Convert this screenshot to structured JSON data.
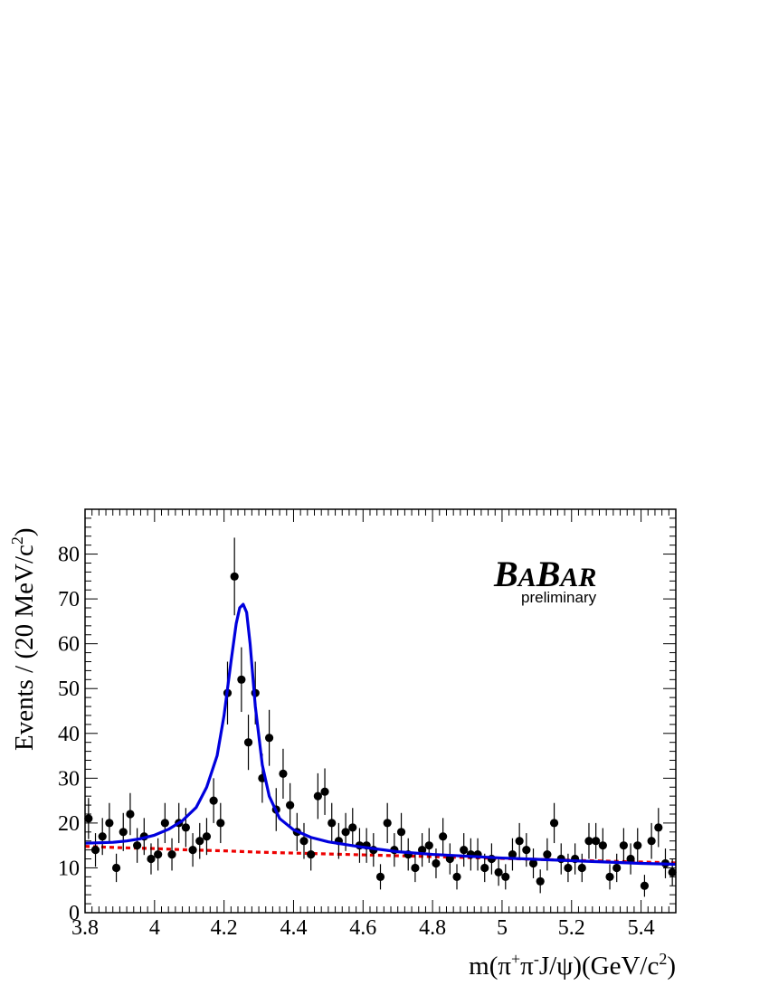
{
  "chart_data": {
    "type": "scatter",
    "xlabel": "m(π⁺π⁻J/ψ)(GeV/c²)",
    "ylabel": "Events / (20 MeV/c²)",
    "xlim": [
      3.8,
      5.5
    ],
    "ylim": [
      0,
      90
    ],
    "x_ticks": [
      "3.8",
      "4",
      "4.2",
      "4.4",
      "4.6",
      "4.8",
      "5",
      "5.2",
      "5.4"
    ],
    "y_ticks": [
      "0",
      "10",
      "20",
      "30",
      "40",
      "50",
      "60",
      "70",
      "80"
    ],
    "grid": false,
    "colors": {
      "points": "#000000",
      "total_fit": "#0000dd",
      "background_fit": "#ee0000"
    },
    "series": [
      {
        "style": "points-with-error-bars",
        "x": [
          3.81,
          3.83,
          3.85,
          3.87,
          3.89,
          3.91,
          3.93,
          3.95,
          3.97,
          3.99,
          4.01,
          4.03,
          4.05,
          4.07,
          4.09,
          4.11,
          4.13,
          4.15,
          4.17,
          4.19,
          4.21,
          4.23,
          4.25,
          4.27,
          4.29,
          4.31,
          4.33,
          4.35,
          4.37,
          4.39,
          4.41,
          4.43,
          4.45,
          4.47,
          4.49,
          4.51,
          4.53,
          4.55,
          4.57,
          4.59,
          4.61,
          4.63,
          4.65,
          4.67,
          4.69,
          4.71,
          4.73,
          4.75,
          4.77,
          4.79,
          4.81,
          4.83,
          4.85,
          4.87,
          4.89,
          4.91,
          4.93,
          4.95,
          4.97,
          4.99,
          5.01,
          5.03,
          5.05,
          5.07,
          5.09,
          5.11,
          5.13,
          5.15,
          5.17,
          5.19,
          5.21,
          5.23,
          5.25,
          5.27,
          5.29,
          5.31,
          5.33,
          5.35,
          5.37,
          5.39,
          5.41,
          5.43,
          5.45,
          5.47,
          5.49
        ],
        "y": [
          21,
          14,
          17,
          20,
          10,
          18,
          22,
          15,
          17,
          12,
          13,
          20,
          13,
          20,
          19,
          14,
          16,
          17,
          25,
          20,
          49,
          75,
          52,
          38,
          49,
          30,
          39,
          23,
          31,
          24,
          18,
          16,
          13,
          26,
          27,
          20,
          16,
          18,
          19,
          15,
          15,
          14,
          8,
          20,
          14,
          18,
          13,
          10,
          14,
          15,
          11,
          17,
          12,
          8,
          14,
          13,
          13,
          10,
          12,
          9,
          8,
          13,
          16,
          14,
          11,
          7,
          13,
          20,
          12,
          10,
          12,
          10,
          16,
          16,
          15,
          8,
          10,
          15,
          12,
          15,
          6,
          16,
          19,
          11,
          9
        ]
      },
      {
        "name": "",
        "style": "line",
        "color": "blue",
        "x": [
          3.8,
          3.84,
          3.88,
          3.92,
          3.96,
          4.0,
          4.04,
          4.08,
          4.12,
          4.15,
          4.18,
          4.2,
          4.22,
          4.235,
          4.245,
          4.255,
          4.265,
          4.275,
          4.29,
          4.31,
          4.33,
          4.36,
          4.4,
          4.45,
          4.5,
          4.55,
          4.6,
          4.7,
          4.8,
          4.9,
          5.0,
          5.1,
          5.2,
          5.3,
          5.4,
          5.5
        ],
        "y": [
          15.5,
          15.6,
          15.7,
          16.0,
          16.5,
          17.3,
          18.6,
          20.5,
          23.5,
          28,
          35,
          44,
          56,
          64.5,
          68,
          68.8,
          67,
          60,
          46,
          33,
          26,
          21,
          18.5,
          16.8,
          15.8,
          15.2,
          14.6,
          13.6,
          13.0,
          12.6,
          12.2,
          11.9,
          11.6,
          11.3,
          11.0,
          10.8
        ]
      },
      {
        "name": "",
        "style": "dashed-line",
        "color": "red",
        "x": [
          3.8,
          3.9,
          4.0,
          4.1,
          4.2,
          4.3,
          4.4,
          4.5,
          4.6,
          4.7,
          4.8,
          4.9,
          5.0,
          5.1,
          5.2,
          5.3,
          5.4,
          5.5
        ],
        "y": [
          14.8,
          14.5,
          14.3,
          14.0,
          13.8,
          13.5,
          13.3,
          13.1,
          12.9,
          12.7,
          12.5,
          12.3,
          12.1,
          11.9,
          11.7,
          11.5,
          11.3,
          11.1
        ]
      }
    ],
    "annotations": {
      "logo_text": "BABAR",
      "logo_sub": "preliminary"
    }
  }
}
